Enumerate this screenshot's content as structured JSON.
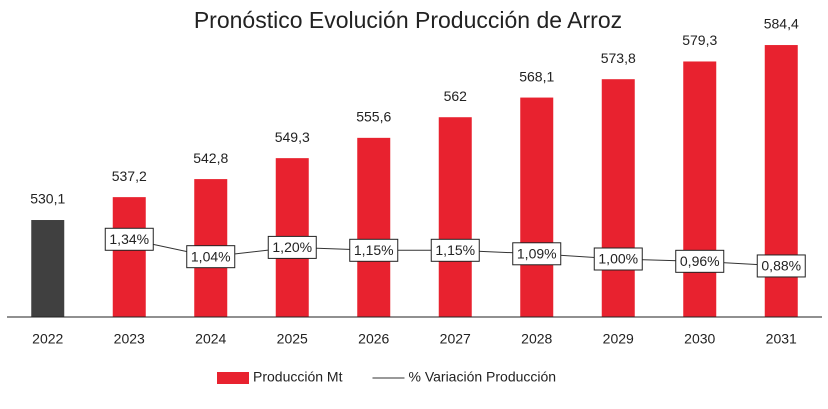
{
  "chart_data": {
    "type": "bar",
    "title": "Pronóstico Evolución Producción de Arroz",
    "categories": [
      "2022",
      "2023",
      "2024",
      "2025",
      "2026",
      "2027",
      "2028",
      "2029",
      "2030",
      "2031"
    ],
    "ylim": [
      500,
      590
    ],
    "y2lim": [
      0,
      5
    ],
    "series": [
      {
        "name": "Producción Mt",
        "type": "bar",
        "color": "#e8222f",
        "colors": [
          "#404040",
          "#e8222f",
          "#e8222f",
          "#e8222f",
          "#e8222f",
          "#e8222f",
          "#e8222f",
          "#e8222f",
          "#e8222f",
          "#e8222f"
        ],
        "values": [
          530.1,
          537.2,
          542.8,
          549.3,
          555.6,
          562,
          568.1,
          573.8,
          579.3,
          584.4
        ],
        "value_labels": [
          "530,1",
          "537,2",
          "542,8",
          "549,3",
          "555,6",
          "562",
          "568,1",
          "573,8",
          "579,3",
          "584,4"
        ]
      },
      {
        "name": "% Variación Producción",
        "type": "line",
        "axis": "y2",
        "color": "#333333",
        "values": [
          null,
          1.34,
          1.04,
          1.2,
          1.15,
          1.15,
          1.09,
          1.0,
          0.96,
          0.88
        ],
        "value_labels": [
          null,
          "1,34%",
          "1,04%",
          "1,20%",
          "1,15%",
          "1,15%",
          "1,09%",
          "1,00%",
          "0,96%",
          "0,88%"
        ]
      }
    ],
    "legend": "bottom"
  }
}
